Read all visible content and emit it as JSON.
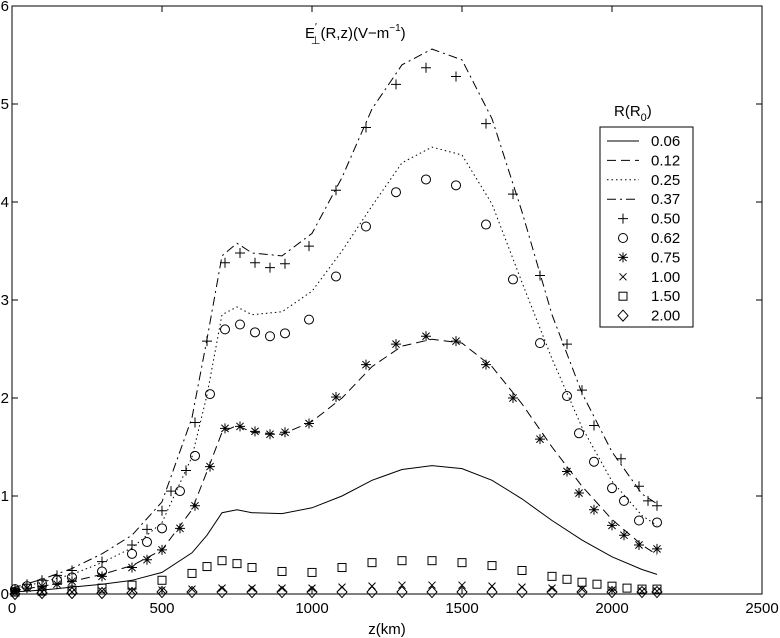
{
  "chart_data": {
    "type": "line",
    "title": "E′⊥(R,z)(V−m−1)",
    "title_parts": {
      "symbol": "E",
      "prime": "′",
      "sub": "⊥",
      "args": "(R,z)(V−m",
      "exp": "−1",
      "close": ")"
    },
    "xlabel": "z(km)",
    "ylabel": "",
    "xlim": [
      0,
      2500
    ],
    "ylim": [
      0,
      6
    ],
    "xticks": [
      "0",
      "500",
      "1000",
      "1500",
      "2000",
      "2500"
    ],
    "yticks": [
      "0",
      "1",
      "2",
      "3",
      "4",
      "5",
      "6"
    ],
    "grid": false,
    "legend": {
      "title": "R(R0)",
      "title_parts": {
        "main": "R(R",
        "sub": "0",
        "close": ")"
      },
      "placement": "right"
    },
    "series": [
      {
        "name": "0.06",
        "marker": "line",
        "dash": "solid",
        "x": [
          0,
          100,
          200,
          300,
          400,
          500,
          600,
          650,
          700,
          750,
          800,
          900,
          1000,
          1100,
          1200,
          1300,
          1400,
          1500,
          1600,
          1700,
          1800,
          1900,
          2000,
          2100,
          2150
        ],
        "y": [
          0.02,
          0.04,
          0.07,
          0.1,
          0.14,
          0.22,
          0.42,
          0.6,
          0.83,
          0.86,
          0.83,
          0.82,
          0.88,
          1.0,
          1.16,
          1.27,
          1.31,
          1.28,
          1.16,
          0.97,
          0.75,
          0.55,
          0.38,
          0.25,
          0.2
        ]
      },
      {
        "name": "0.12",
        "marker": "line",
        "dash": "dashed",
        "x": [
          0,
          100,
          200,
          300,
          400,
          500,
          600,
          650,
          700,
          750,
          800,
          900,
          1000,
          1100,
          1200,
          1300,
          1400,
          1500,
          1600,
          1700,
          1800,
          1900,
          2000,
          2100,
          2150
        ],
        "y": [
          0.03,
          0.08,
          0.13,
          0.2,
          0.29,
          0.45,
          0.86,
          1.25,
          1.65,
          1.72,
          1.65,
          1.63,
          1.76,
          2.0,
          2.32,
          2.53,
          2.6,
          2.56,
          2.32,
          1.94,
          1.5,
          1.1,
          0.76,
          0.5,
          0.4
        ]
      },
      {
        "name": "0.25",
        "marker": "line",
        "dash": "dotted",
        "x": [
          0,
          100,
          200,
          300,
          400,
          500,
          600,
          650,
          700,
          750,
          800,
          900,
          1000,
          1100,
          1200,
          1300,
          1400,
          1500,
          1600,
          1700,
          1800,
          1900,
          2000,
          2100,
          2150
        ],
        "y": [
          0.05,
          0.12,
          0.2,
          0.32,
          0.47,
          0.73,
          1.4,
          2.03,
          2.85,
          2.93,
          2.85,
          2.88,
          3.09,
          3.5,
          3.96,
          4.4,
          4.56,
          4.48,
          3.98,
          3.18,
          2.4,
          1.7,
          1.15,
          0.8,
          0.7
        ]
      },
      {
        "name": "0.37",
        "marker": "line",
        "dash": "dashdot",
        "x": [
          0,
          100,
          200,
          300,
          400,
          500,
          600,
          650,
          700,
          750,
          800,
          900,
          1000,
          1100,
          1200,
          1300,
          1400,
          1500,
          1600,
          1700,
          1800,
          1900,
          2000,
          2100,
          2150
        ],
        "y": [
          0.06,
          0.15,
          0.26,
          0.41,
          0.6,
          0.94,
          1.8,
          2.6,
          3.45,
          3.58,
          3.48,
          3.45,
          3.68,
          4.25,
          4.95,
          5.4,
          5.56,
          5.45,
          4.85,
          3.9,
          2.85,
          2.05,
          1.45,
          1.02,
          0.92
        ]
      },
      {
        "name": "0.50",
        "marker": "plus",
        "x": [
          10,
          50,
          100,
          150,
          200,
          300,
          400,
          450,
          500,
          530,
          580,
          610,
          650,
          710,
          760,
          810,
          860,
          910,
          990,
          1080,
          1180,
          1280,
          1380,
          1480,
          1580,
          1670,
          1760,
          1850,
          1900,
          1940,
          2030,
          2090,
          2120,
          2150
        ],
        "y": [
          0.05,
          0.1,
          0.14,
          0.19,
          0.24,
          0.33,
          0.5,
          0.66,
          0.85,
          1.05,
          1.26,
          1.75,
          2.58,
          3.38,
          3.48,
          3.38,
          3.33,
          3.37,
          3.55,
          4.12,
          4.76,
          5.2,
          5.37,
          5.28,
          4.8,
          4.08,
          3.25,
          2.55,
          2.08,
          1.72,
          1.38,
          1.1,
          0.95,
          0.9
        ]
      },
      {
        "name": "0.62",
        "marker": "circle",
        "x": [
          10,
          50,
          100,
          150,
          200,
          300,
          400,
          450,
          500,
          560,
          610,
          660,
          710,
          760,
          810,
          860,
          910,
          990,
          1080,
          1180,
          1280,
          1380,
          1480,
          1580,
          1670,
          1760,
          1850,
          1890,
          1940,
          2000,
          2040,
          2090,
          2150
        ],
        "y": [
          0.05,
          0.08,
          0.11,
          0.14,
          0.17,
          0.23,
          0.41,
          0.53,
          0.67,
          1.05,
          1.41,
          2.04,
          2.7,
          2.75,
          2.67,
          2.63,
          2.66,
          2.8,
          3.24,
          3.75,
          4.1,
          4.23,
          4.17,
          3.77,
          3.21,
          2.56,
          2.02,
          1.64,
          1.35,
          1.08,
          0.95,
          0.75,
          0.73
        ]
      },
      {
        "name": "0.75",
        "marker": "asterisk",
        "x": [
          10,
          50,
          100,
          150,
          200,
          300,
          400,
          450,
          500,
          560,
          610,
          660,
          710,
          760,
          810,
          860,
          910,
          990,
          1080,
          1180,
          1280,
          1380,
          1480,
          1580,
          1670,
          1760,
          1850,
          1890,
          1940,
          2000,
          2040,
          2090,
          2150
        ],
        "y": [
          0.03,
          0.06,
          0.08,
          0.1,
          0.13,
          0.18,
          0.27,
          0.35,
          0.45,
          0.67,
          0.9,
          1.3,
          1.69,
          1.71,
          1.66,
          1.63,
          1.65,
          1.74,
          2.01,
          2.34,
          2.55,
          2.63,
          2.58,
          2.34,
          2.0,
          1.58,
          1.25,
          1.03,
          0.86,
          0.7,
          0.6,
          0.5,
          0.46
        ]
      },
      {
        "name": "1.00",
        "marker": "cross",
        "x": [
          10,
          100,
          200,
          300,
          400,
          500,
          600,
          700,
          800,
          900,
          1000,
          1100,
          1200,
          1300,
          1400,
          1500,
          1600,
          1700,
          1800,
          1900,
          2000,
          2100,
          2150
        ],
        "y": [
          0.01,
          0.02,
          0.02,
          0.03,
          0.03,
          0.04,
          0.05,
          0.06,
          0.06,
          0.06,
          0.06,
          0.07,
          0.08,
          0.09,
          0.09,
          0.09,
          0.08,
          0.07,
          0.06,
          0.05,
          0.04,
          0.03,
          0.03
        ]
      },
      {
        "name": "1.50",
        "marker": "square",
        "x": [
          10,
          100,
          200,
          300,
          400,
          500,
          600,
          650,
          700,
          750,
          800,
          900,
          1000,
          1100,
          1200,
          1300,
          1400,
          1500,
          1600,
          1700,
          1800,
          1850,
          1900,
          1950,
          2000,
          2050,
          2100,
          2150
        ],
        "y": [
          0.02,
          0.03,
          0.04,
          0.06,
          0.09,
          0.14,
          0.21,
          0.28,
          0.34,
          0.31,
          0.27,
          0.23,
          0.22,
          0.27,
          0.32,
          0.34,
          0.34,
          0.32,
          0.29,
          0.24,
          0.18,
          0.15,
          0.12,
          0.1,
          0.08,
          0.06,
          0.05,
          0.05
        ]
      },
      {
        "name": "2.00",
        "marker": "diamond",
        "x": [
          10,
          100,
          200,
          300,
          400,
          500,
          600,
          700,
          800,
          900,
          1000,
          1100,
          1200,
          1300,
          1400,
          1500,
          1600,
          1700,
          1800,
          1900,
          2000,
          2100,
          2150
        ],
        "y": [
          0.0,
          0.01,
          0.01,
          0.01,
          0.01,
          0.02,
          0.02,
          0.02,
          0.02,
          0.02,
          0.02,
          0.02,
          0.02,
          0.02,
          0.02,
          0.02,
          0.02,
          0.02,
          0.02,
          0.02,
          0.02,
          0.02,
          0.02
        ]
      }
    ]
  }
}
